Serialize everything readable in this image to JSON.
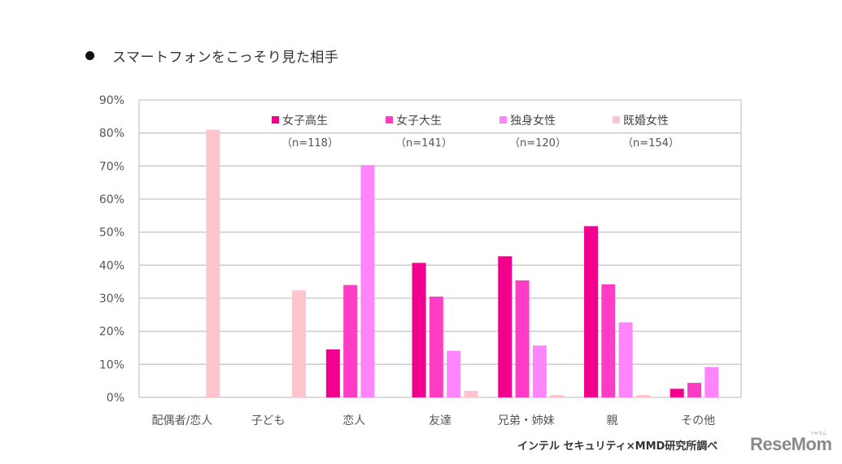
{
  "title": {
    "bullet": "●",
    "text": "スマートフォンをこっそり見た相手"
  },
  "chart_data": {
    "type": "bar",
    "title": "スマートフォンをこっそり見た相手",
    "xlabel": "",
    "ylabel": "",
    "ylim": [
      0,
      90
    ],
    "ytick_step": 10,
    "ytick_labels": [
      "0%",
      "10%",
      "20%",
      "30%",
      "40%",
      "50%",
      "60%",
      "70%",
      "80%",
      "90%"
    ],
    "grid": true,
    "legend_position": "top",
    "categories": [
      "配偶者/恋人",
      "子ども",
      "恋人",
      "友達",
      "兄弟・姉妹",
      "親",
      "その他"
    ],
    "series": [
      {
        "name": "女子高生",
        "n": "（n=118）",
        "color": "#f0008c",
        "values": [
          null,
          null,
          14.5,
          40.7,
          42.7,
          51.8,
          2.6
        ]
      },
      {
        "name": "女子大生",
        "n": "（n=141）",
        "color": "#ff3dc4",
        "values": [
          null,
          null,
          34.0,
          30.5,
          35.4,
          34.2,
          4.4
        ]
      },
      {
        "name": "独身女性",
        "n": "（n=120）",
        "color": "#ff85ff",
        "values": [
          null,
          null,
          70.3,
          14.1,
          15.7,
          22.7,
          9.2
        ]
      },
      {
        "name": "既婚女性",
        "n": "（n=154）",
        "color": "#ffc4cc",
        "values": [
          81.0,
          32.4,
          null,
          2.0,
          0.7,
          0.7,
          null
        ]
      }
    ]
  },
  "footer": {
    "credit": "インテル セキュリティ×MMD研究所調べ",
    "logo": "ReseMom",
    "logo_ruby": "リセマム"
  }
}
